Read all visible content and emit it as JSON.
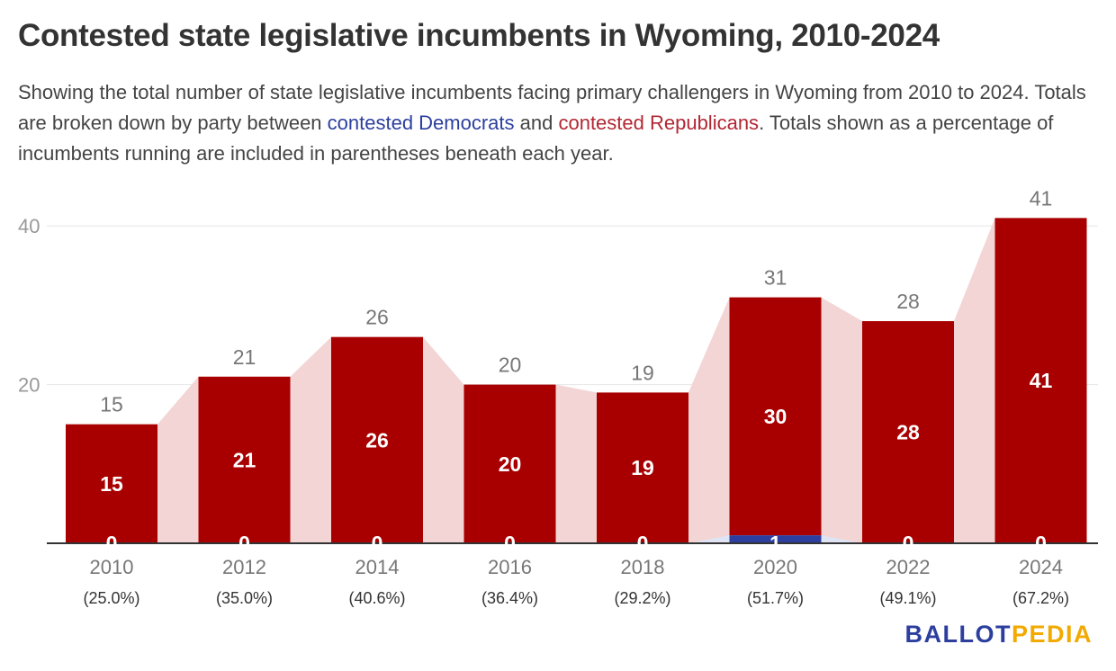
{
  "title": "Contested state legislative incumbents in Wyoming, 2010-2024",
  "subtitle": {
    "part1": "Showing the total number of state legislative incumbents facing primary challengers in Wyoming from 2010 to 2024. Totals are broken down by party between ",
    "dem_label": "contested Democrats",
    "part2": " and ",
    "rep_label": "contested Republicans",
    "part3": ". Totals shown as a percentage of incumbents running are included in parentheses beneath each year."
  },
  "logo": {
    "ballot": "BALLOT",
    "pedia": "PEDIA"
  },
  "colors": {
    "democrat": "#2c3f9e",
    "republican": "#a80000",
    "total_area": "#f3d5d5",
    "dem_area": "#dfe4f4"
  },
  "chart_data": {
    "type": "bar",
    "stacked": true,
    "categories": [
      "2010",
      "2012",
      "2014",
      "2016",
      "2018",
      "2020",
      "2022",
      "2024"
    ],
    "percentages": [
      "(25.0%)",
      "(35.0%)",
      "(40.6%)",
      "(36.4%)",
      "(29.2%)",
      "(51.7%)",
      "(49.1%)",
      "(67.2%)"
    ],
    "series": [
      {
        "name": "contested Democrats",
        "values": [
          0,
          0,
          0,
          0,
          0,
          1,
          0,
          0
        ]
      },
      {
        "name": "contested Republicans",
        "values": [
          15,
          21,
          26,
          20,
          19,
          30,
          28,
          41
        ]
      }
    ],
    "totals": [
      15,
      21,
      26,
      20,
      19,
      31,
      28,
      41
    ],
    "yticks": [
      20,
      40
    ],
    "ylim": [
      0,
      44
    ],
    "grid": true
  }
}
